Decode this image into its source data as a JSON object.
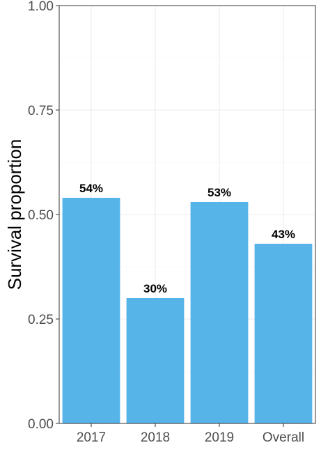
{
  "chart_data": {
    "type": "bar",
    "title": "",
    "xlabel": "",
    "ylabel": "Survival proportion",
    "categories": [
      "2017",
      "2018",
      "2019",
      "Overall"
    ],
    "values": [
      0.54,
      0.3,
      0.53,
      0.43
    ],
    "data_labels": [
      "54%",
      "30%",
      "53%",
      "43%"
    ],
    "ylim": [
      0,
      1
    ],
    "yticks": [
      0,
      0.25,
      0.5,
      0.75,
      1
    ],
    "ytick_labels": [
      "0.00",
      "0.25",
      "0.50",
      "0.75",
      "1.00"
    ],
    "grid": true,
    "legend": "none",
    "bar_color": "#56B4E9"
  }
}
